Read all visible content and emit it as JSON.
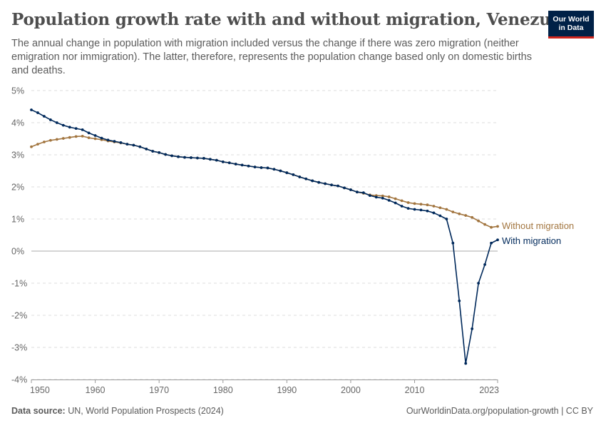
{
  "header": {
    "title": "Population growth rate with and without migration, Venezuela",
    "subtitle": "The annual change in population with migration included versus the change if there was zero migration (neither emigration nor immigration). The latter, therefore, represents the population change based only on domestic births and deaths."
  },
  "logo": {
    "line1": "Our World",
    "line2": "in Data",
    "bg_color": "#002147",
    "accent_color": "#ce261e"
  },
  "footer": {
    "source_label": "Data source:",
    "source_text": "UN, World Population Prospects (2024)",
    "url_text": "OurWorldinData.org/population-growth | CC BY"
  },
  "chart_data": {
    "type": "line",
    "x_tick_labels": [
      "1950",
      "1960",
      "1970",
      "1980",
      "1990",
      "2000",
      "2010",
      "2023"
    ],
    "x_ticks": [
      1950,
      1960,
      1970,
      1980,
      1990,
      2000,
      2010,
      2023
    ],
    "y_tick_labels": [
      "-4%",
      "-3%",
      "-2%",
      "-1%",
      "0%",
      "1%",
      "2%",
      "3%",
      "4%",
      "5%"
    ],
    "y_ticks": [
      -4,
      -3,
      -2,
      -1,
      0,
      1,
      2,
      3,
      4,
      5
    ],
    "xlim": [
      1950,
      2023
    ],
    "ylim": [
      -4,
      5
    ],
    "grid": true,
    "legend": "inline-right",
    "series": [
      {
        "name": "Without migration",
        "color": "#a2753f",
        "x": [
          1950,
          1951,
          1952,
          1953,
          1954,
          1955,
          1956,
          1957,
          1958,
          1959,
          1960,
          1961,
          1962,
          1963,
          1964,
          1965,
          1966,
          1967,
          1968,
          1969,
          1970,
          1971,
          1972,
          1973,
          1974,
          1975,
          1976,
          1977,
          1978,
          1979,
          1980,
          1981,
          1982,
          1983,
          1984,
          1985,
          1986,
          1987,
          1988,
          1989,
          1990,
          1991,
          1992,
          1993,
          1994,
          1995,
          1996,
          1997,
          1998,
          1999,
          2000,
          2001,
          2002,
          2003,
          2004,
          2005,
          2006,
          2007,
          2008,
          2009,
          2010,
          2011,
          2012,
          2013,
          2014,
          2015,
          2016,
          2017,
          2018,
          2019,
          2020,
          2021,
          2022,
          2023
        ],
        "values": [
          3.25,
          3.33,
          3.4,
          3.45,
          3.48,
          3.51,
          3.54,
          3.57,
          3.58,
          3.53,
          3.5,
          3.47,
          3.43,
          3.4,
          3.37,
          3.33,
          3.3,
          3.25,
          3.18,
          3.11,
          3.07,
          3.01,
          2.97,
          2.94,
          2.92,
          2.91,
          2.9,
          2.89,
          2.86,
          2.83,
          2.78,
          2.75,
          2.71,
          2.68,
          2.65,
          2.62,
          2.6,
          2.59,
          2.55,
          2.5,
          2.44,
          2.38,
          2.31,
          2.25,
          2.19,
          2.14,
          2.1,
          2.06,
          2.03,
          1.97,
          1.91,
          1.84,
          1.8,
          1.75,
          1.73,
          1.72,
          1.69,
          1.63,
          1.57,
          1.51,
          1.48,
          1.46,
          1.44,
          1.4,
          1.35,
          1.3,
          1.22,
          1.16,
          1.11,
          1.05,
          0.94,
          0.83,
          0.74,
          0.77
        ]
      },
      {
        "name": "With migration",
        "color": "#00295b",
        "x": [
          1950,
          1951,
          1952,
          1953,
          1954,
          1955,
          1956,
          1957,
          1958,
          1959,
          1960,
          1961,
          1962,
          1963,
          1964,
          1965,
          1966,
          1967,
          1968,
          1969,
          1970,
          1971,
          1972,
          1973,
          1974,
          1975,
          1976,
          1977,
          1978,
          1979,
          1980,
          1981,
          1982,
          1983,
          1984,
          1985,
          1986,
          1987,
          1988,
          1989,
          1990,
          1991,
          1992,
          1993,
          1994,
          1995,
          1996,
          1997,
          1998,
          1999,
          2000,
          2001,
          2002,
          2003,
          2004,
          2005,
          2006,
          2007,
          2008,
          2009,
          2010,
          2011,
          2012,
          2013,
          2014,
          2015,
          2016,
          2017,
          2018,
          2019,
          2020,
          2021,
          2022,
          2023
        ],
        "values": [
          4.4,
          4.31,
          4.2,
          4.09,
          4.0,
          3.92,
          3.86,
          3.82,
          3.78,
          3.68,
          3.6,
          3.52,
          3.46,
          3.42,
          3.38,
          3.33,
          3.3,
          3.25,
          3.18,
          3.11,
          3.07,
          3.01,
          2.97,
          2.94,
          2.92,
          2.91,
          2.9,
          2.89,
          2.86,
          2.83,
          2.78,
          2.75,
          2.71,
          2.68,
          2.65,
          2.62,
          2.6,
          2.59,
          2.55,
          2.5,
          2.44,
          2.38,
          2.31,
          2.25,
          2.19,
          2.14,
          2.1,
          2.06,
          2.03,
          1.97,
          1.91,
          1.84,
          1.82,
          1.73,
          1.68,
          1.65,
          1.58,
          1.5,
          1.4,
          1.33,
          1.3,
          1.28,
          1.25,
          1.19,
          1.1,
          1.0,
          0.25,
          -1.55,
          -3.5,
          -2.42,
          -1.0,
          -0.42,
          0.25,
          0.35
        ]
      }
    ]
  }
}
